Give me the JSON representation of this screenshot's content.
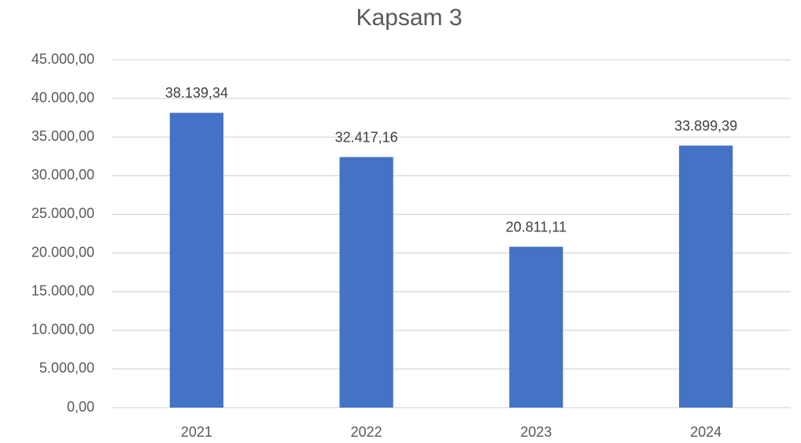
{
  "chart_data": {
    "type": "bar",
    "title": "Kapsam 3",
    "categories": [
      "2021",
      "2022",
      "2023",
      "2024"
    ],
    "values": [
      38139.34,
      32417.16,
      20811.11,
      33899.39
    ],
    "value_labels": [
      "38.139,34",
      "32.417,16",
      "20.811,11",
      "33.899,39"
    ],
    "color": "#4472c4",
    "ylim": [
      0,
      45000
    ],
    "yticks": [
      {
        "value": 0,
        "label": "0,00"
      },
      {
        "value": 5000,
        "label": "5.000,00"
      },
      {
        "value": 10000,
        "label": "10.000,00"
      },
      {
        "value": 15000,
        "label": "15.000,00"
      },
      {
        "value": 20000,
        "label": "20.000,00"
      },
      {
        "value": 25000,
        "label": "25.000,00"
      },
      {
        "value": 30000,
        "label": "30.000,00"
      },
      {
        "value": 35000,
        "label": "35.000,00"
      },
      {
        "value": 40000,
        "label": "40.000,00"
      },
      {
        "value": 45000,
        "label": "45.000,00"
      }
    ],
    "grid": true
  }
}
